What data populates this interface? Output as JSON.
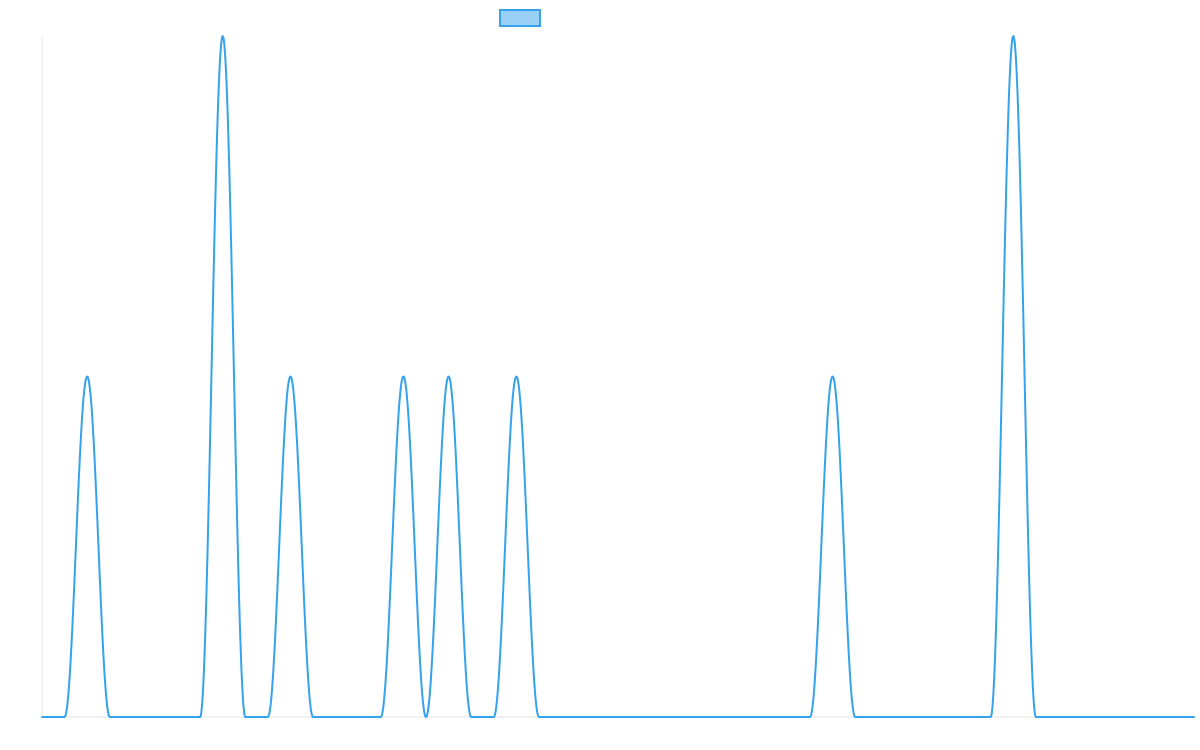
{
  "chart_data": {
    "type": "line",
    "title": "",
    "xlabel": "",
    "ylabel": "",
    "xlim": [
      0,
      51
    ],
    "ylim": [
      0,
      2
    ],
    "grid": false,
    "legend_position": "top",
    "series": [
      {
        "label": "",
        "color": "#36a2eb",
        "fill": "#9ad0f5",
        "pulses": [
          {
            "center": 2,
            "height": 1
          },
          {
            "center": 8,
            "height": 2
          },
          {
            "center": 11,
            "height": 1
          },
          {
            "center": 16,
            "height": 1
          },
          {
            "center": 18,
            "height": 1
          },
          {
            "center": 21,
            "height": 1
          },
          {
            "center": 35,
            "height": 1
          },
          {
            "center": 43,
            "height": 2
          }
        ],
        "pulse_half_width": 1
      }
    ]
  }
}
